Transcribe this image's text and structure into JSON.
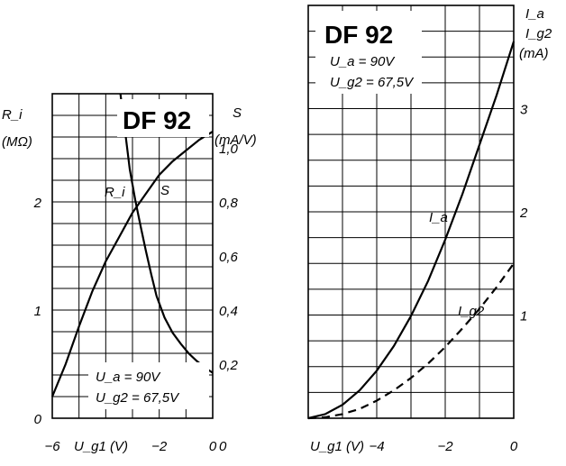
{
  "chart_data": [
    {
      "type": "line",
      "title": "DF 92",
      "conditions": [
        "U_a = 90V",
        "U_g2 = 67,5V"
      ],
      "xlabel": "U_g1 (V)",
      "xlim": [
        -6,
        0
      ],
      "x_ticks": [
        "-6",
        "-2",
        "0"
      ],
      "y_left": {
        "label": "R_i",
        "unit": "(MΩ)",
        "lim": [
          0,
          3
        ],
        "ticks": [
          "0",
          "1",
          "2"
        ]
      },
      "y_right": {
        "label": "S",
        "unit": "(mA/V)",
        "lim": [
          0,
          1.2
        ],
        "ticks": [
          "0,2",
          "0,4",
          "0,6",
          "0,8",
          "1,0"
        ]
      },
      "grid": true,
      "series": [
        {
          "name": "R_i",
          "axis": "left",
          "x": [
            -3.45,
            -3.3,
            -3.1,
            -2.9,
            -2.7,
            -2.5,
            -2.3,
            -2.1,
            -1.8,
            -1.5,
            -1.2,
            -0.9,
            -0.6,
            -0.3,
            0
          ],
          "y": [
            3.0,
            2.7,
            2.3,
            2.02,
            1.78,
            1.55,
            1.33,
            1.13,
            0.93,
            0.79,
            0.69,
            0.6,
            0.53,
            0.47,
            0.42
          ]
        },
        {
          "name": "S",
          "axis": "right",
          "x": [
            -6,
            -5.5,
            -5,
            -4.5,
            -4,
            -3.5,
            -3,
            -2.5,
            -2,
            -1.5,
            -1,
            -0.5,
            0
          ],
          "y": [
            0.08,
            0.2,
            0.34,
            0.47,
            0.58,
            0.67,
            0.76,
            0.83,
            0.9,
            0.95,
            0.99,
            1.03,
            1.06
          ]
        }
      ]
    },
    {
      "type": "line",
      "title": "DF 92",
      "conditions": [
        "U_a = 90V",
        "U_g2 = 67,5V"
      ],
      "xlabel": "U_g1 (V)",
      "xlim": [
        -6,
        0
      ],
      "x_ticks": [
        "-4",
        "-2",
        "0"
      ],
      "y_right": {
        "labels": [
          "I_a",
          "I_g2"
        ],
        "unit": "(mA)",
        "lim": [
          0,
          4
        ],
        "ticks": [
          "1",
          "2",
          "3"
        ]
      },
      "grid": true,
      "series": [
        {
          "name": "I_a",
          "style": "solid",
          "x": [
            -6,
            -5.5,
            -5,
            -4.5,
            -4,
            -3.5,
            -3,
            -2.5,
            -2,
            -1.5,
            -1,
            -0.5,
            0
          ],
          "y": [
            0.0,
            0.04,
            0.13,
            0.27,
            0.46,
            0.7,
            0.99,
            1.33,
            1.73,
            2.17,
            2.65,
            3.13,
            3.65
          ]
        },
        {
          "name": "I_g2",
          "style": "dashed",
          "x": [
            -6,
            -5.5,
            -5,
            -4.5,
            -4,
            -3.5,
            -3,
            -2.5,
            -2,
            -1.5,
            -1,
            -0.5,
            0
          ],
          "y": [
            0.0,
            0.01,
            0.04,
            0.09,
            0.17,
            0.27,
            0.39,
            0.53,
            0.69,
            0.87,
            1.06,
            1.27,
            1.5
          ]
        }
      ]
    }
  ]
}
